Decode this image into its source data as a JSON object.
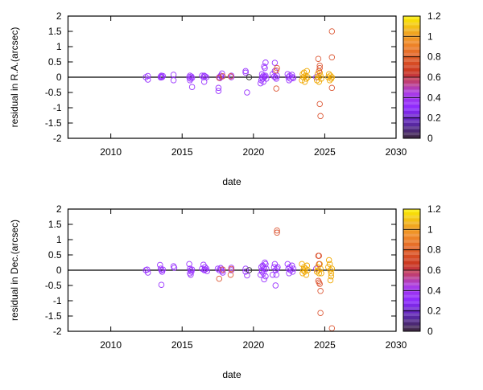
{
  "chart_data": [
    {
      "type": "scatter",
      "xlabel": "date",
      "ylabel": "residual in R.A.(arcsec)",
      "xlim": [
        2007,
        2030
      ],
      "ylim": [
        -2,
        2
      ],
      "xticks": [
        "2010",
        "2015",
        "2020",
        "2025",
        "2030"
      ],
      "yticks": [
        "-2",
        "-1.5",
        "-1",
        "-0.5",
        "0",
        "0.5",
        "1",
        "1.5",
        "2"
      ],
      "zero_line": true,
      "marker": "open-circle",
      "colorbar": {
        "range": [
          0,
          1.2
        ],
        "ticks": [
          "0",
          "0.2",
          "0.4",
          "0.6",
          "0.8",
          "1",
          "1.2"
        ],
        "placement": "right"
      },
      "points": [
        [
          2012.45,
          0,
          0.35
        ],
        [
          2012.6,
          -0.08,
          0.35
        ],
        [
          2012.6,
          0.04,
          0.35
        ],
        [
          2013.5,
          0.02,
          0.35
        ],
        [
          2013.55,
          0.05,
          0.35
        ],
        [
          2013.6,
          0,
          0.35
        ],
        [
          2013.65,
          0.04,
          0.35
        ],
        [
          2013.5,
          -0.01,
          0.35
        ],
        [
          2014.4,
          0.08,
          0.35
        ],
        [
          2014.4,
          -0.1,
          0.35
        ],
        [
          2015.5,
          0,
          0.35
        ],
        [
          2015.55,
          0.05,
          0.35
        ],
        [
          2015.6,
          -0.05,
          0.35
        ],
        [
          2015.65,
          0.02,
          0.35
        ],
        [
          2015.7,
          -0.02,
          0.35
        ],
        [
          2015.55,
          -0.1,
          0.35
        ],
        [
          2015.7,
          -0.32,
          0.35
        ],
        [
          2016.4,
          0.05,
          0.35
        ],
        [
          2016.5,
          0,
          0.35
        ],
        [
          2016.55,
          -0.15,
          0.35
        ],
        [
          2016.6,
          0.03,
          0.35
        ],
        [
          2016.7,
          0,
          0.35
        ],
        [
          2016.55,
          0.05,
          0.35
        ],
        [
          2017.55,
          -0.35,
          0.35
        ],
        [
          2017.55,
          -0.45,
          0.35
        ],
        [
          2017.6,
          0,
          0.35
        ],
        [
          2017.7,
          0.05,
          0.35
        ],
        [
          2017.8,
          0.12,
          0.35
        ],
        [
          2017.75,
          0.02,
          0.35
        ],
        [
          2017.65,
          -0.03,
          0.35
        ],
        [
          2017.6,
          -0.02,
          0.8
        ],
        [
          2017.85,
          0.03,
          0.8
        ],
        [
          2018.45,
          0.05,
          0.35
        ],
        [
          2018.45,
          0,
          0.35
        ],
        [
          2018.4,
          0.03,
          0.8
        ],
        [
          2019.45,
          0.2,
          0.35
        ],
        [
          2019.45,
          0.15,
          0.35
        ],
        [
          2019.55,
          -0.5,
          0.35
        ],
        [
          2019.7,
          0,
          0.05
        ],
        [
          2020.5,
          -0.2,
          0.35
        ],
        [
          2020.55,
          -0.1,
          0.35
        ],
        [
          2020.6,
          0,
          0.35
        ],
        [
          2020.6,
          0.1,
          0.35
        ],
        [
          2020.65,
          -0.05,
          0.35
        ],
        [
          2020.7,
          0.05,
          0.35
        ],
        [
          2020.7,
          -0.15,
          0.35
        ],
        [
          2020.75,
          0,
          0.35
        ],
        [
          2020.8,
          0.3,
          0.35
        ],
        [
          2020.75,
          0.35,
          0.35
        ],
        [
          2020.85,
          0.48,
          0.35
        ],
        [
          2020.85,
          0.05,
          0.35
        ],
        [
          2020.9,
          -0.05,
          0.35
        ],
        [
          2020.8,
          0.02,
          0.35
        ],
        [
          2021.35,
          0.1,
          0.35
        ],
        [
          2021.5,
          0.47,
          0.35
        ],
        [
          2021.5,
          0.2,
          0.35
        ],
        [
          2021.55,
          0,
          0.35
        ],
        [
          2021.6,
          -0.05,
          0.35
        ],
        [
          2021.65,
          0.05,
          0.35
        ],
        [
          2021.45,
          0.02,
          0.35
        ],
        [
          2021.6,
          -0.37,
          0.8
        ],
        [
          2021.65,
          0.3,
          0.8
        ],
        [
          2021.6,
          0.22,
          0.8
        ],
        [
          2022.4,
          0.1,
          0.35
        ],
        [
          2022.45,
          0,
          0.35
        ],
        [
          2022.5,
          -0.1,
          0.35
        ],
        [
          2022.55,
          0.05,
          0.35
        ],
        [
          2022.6,
          -0.05,
          0.35
        ],
        [
          2022.7,
          0.08,
          0.35
        ],
        [
          2022.75,
          0,
          0.35
        ],
        [
          2022.8,
          -0.03,
          0.35
        ],
        [
          2023.4,
          -0.1,
          1.0
        ],
        [
          2023.45,
          0.1,
          1.0
        ],
        [
          2023.5,
          0,
          1.0
        ],
        [
          2023.55,
          0.15,
          1.0
        ],
        [
          2023.6,
          -0.15,
          1.0
        ],
        [
          2023.65,
          0.05,
          1.0
        ],
        [
          2023.7,
          -0.05,
          1.0
        ],
        [
          2023.75,
          0.2,
          1.0
        ],
        [
          2023.8,
          0,
          1.0
        ],
        [
          2024.4,
          0,
          0.35
        ],
        [
          2024.45,
          -0.1,
          1.0
        ],
        [
          2024.5,
          0.1,
          1.0
        ],
        [
          2024.55,
          0,
          1.0
        ],
        [
          2024.6,
          -0.15,
          1.0
        ],
        [
          2024.65,
          0.15,
          1.0
        ],
        [
          2024.7,
          0.05,
          1.0
        ],
        [
          2024.75,
          -0.05,
          1.0
        ],
        [
          2024.55,
          0.6,
          0.8
        ],
        [
          2024.65,
          0.38,
          0.8
        ],
        [
          2024.65,
          0.3,
          0.8
        ],
        [
          2024.6,
          0.2,
          0.8
        ],
        [
          2024.65,
          -0.88,
          0.8
        ],
        [
          2024.7,
          -1.27,
          0.8
        ],
        [
          2025.25,
          0,
          1.0
        ],
        [
          2025.3,
          0.1,
          1.0
        ],
        [
          2025.35,
          -0.1,
          1.0
        ],
        [
          2025.4,
          0.05,
          1.0
        ],
        [
          2025.45,
          -0.05,
          1.0
        ],
        [
          2025.5,
          0,
          1.0
        ],
        [
          2025.5,
          1.5,
          0.8
        ],
        [
          2025.5,
          0.65,
          0.8
        ],
        [
          2025.5,
          -0.35,
          0.8
        ]
      ]
    },
    {
      "type": "scatter",
      "xlabel": "date",
      "ylabel": "residual in Dec.(arcsec)",
      "xlim": [
        2007,
        2030
      ],
      "ylim": [
        -2,
        2
      ],
      "xticks": [
        "2010",
        "2015",
        "2020",
        "2025",
        "2030"
      ],
      "yticks": [
        "-2",
        "-1.5",
        "-1",
        "-0.5",
        "0",
        "0.5",
        "1",
        "1.5",
        "2"
      ],
      "zero_line": true,
      "marker": "open-circle",
      "colorbar": {
        "range": [
          0,
          1.2
        ],
        "ticks": [
          "0",
          "0.2",
          "0.4",
          "0.6",
          "0.8",
          "1",
          "1.2"
        ],
        "placement": "right"
      },
      "points": [
        [
          2012.45,
          0,
          0.35
        ],
        [
          2012.6,
          -0.08,
          0.35
        ],
        [
          2012.55,
          0.02,
          0.35
        ],
        [
          2013.45,
          0.17,
          0.35
        ],
        [
          2013.5,
          0.05,
          0.35
        ],
        [
          2013.55,
          0,
          0.35
        ],
        [
          2013.6,
          -0.05,
          0.35
        ],
        [
          2013.65,
          0.02,
          0.35
        ],
        [
          2013.55,
          -0.48,
          0.35
        ],
        [
          2014.4,
          0.13,
          0.35
        ],
        [
          2014.45,
          0.08,
          0.35
        ],
        [
          2015.5,
          0.2,
          0.35
        ],
        [
          2015.55,
          0.05,
          0.35
        ],
        [
          2015.6,
          0,
          0.35
        ],
        [
          2015.55,
          -0.1,
          0.35
        ],
        [
          2015.6,
          -0.15,
          0.35
        ],
        [
          2015.7,
          0.02,
          0.35
        ],
        [
          2015.65,
          -0.05,
          0.35
        ],
        [
          2016.4,
          0.05,
          0.35
        ],
        [
          2016.5,
          0.18,
          0.35
        ],
        [
          2016.55,
          0,
          0.35
        ],
        [
          2016.6,
          0.1,
          0.35
        ],
        [
          2016.7,
          0.05,
          0.35
        ],
        [
          2016.75,
          -0.03,
          0.35
        ],
        [
          2016.6,
          0.02,
          0.35
        ],
        [
          2017.5,
          0.05,
          0.35
        ],
        [
          2017.6,
          0,
          0.35
        ],
        [
          2017.7,
          0.07,
          0.35
        ],
        [
          2017.75,
          0.02,
          0.35
        ],
        [
          2017.8,
          -0.03,
          0.35
        ],
        [
          2017.85,
          -0.08,
          0.35
        ],
        [
          2017.6,
          -0.28,
          0.8
        ],
        [
          2017.85,
          0.02,
          0.8
        ],
        [
          2018.45,
          0.08,
          0.35
        ],
        [
          2018.45,
          0,
          0.35
        ],
        [
          2018.4,
          -0.15,
          0.8
        ],
        [
          2018.45,
          0.04,
          0.8
        ],
        [
          2019.45,
          0.05,
          0.35
        ],
        [
          2019.45,
          -0.05,
          0.35
        ],
        [
          2019.55,
          -0.17,
          0.35
        ],
        [
          2019.7,
          0,
          0.05
        ],
        [
          2020.5,
          -0.15,
          0.35
        ],
        [
          2020.55,
          0.1,
          0.35
        ],
        [
          2020.6,
          0,
          0.35
        ],
        [
          2020.6,
          -0.05,
          0.35
        ],
        [
          2020.65,
          0.15,
          0.35
        ],
        [
          2020.7,
          -0.1,
          0.35
        ],
        [
          2020.75,
          0.05,
          0.35
        ],
        [
          2020.8,
          0.25,
          0.35
        ],
        [
          2020.75,
          -0.3,
          0.35
        ],
        [
          2020.85,
          0.2,
          0.35
        ],
        [
          2020.85,
          -0.2,
          0.35
        ],
        [
          2020.9,
          0.05,
          0.35
        ],
        [
          2020.7,
          0.1,
          0.35
        ],
        [
          2021.35,
          -0.15,
          0.35
        ],
        [
          2021.45,
          0.1,
          0.35
        ],
        [
          2021.5,
          0.2,
          0.35
        ],
        [
          2021.55,
          0,
          0.35
        ],
        [
          2021.6,
          -0.15,
          0.35
        ],
        [
          2021.55,
          -0.5,
          0.35
        ],
        [
          2021.65,
          0.05,
          0.35
        ],
        [
          2021.7,
          0.1,
          0.35
        ],
        [
          2021.65,
          1.3,
          0.8
        ],
        [
          2021.65,
          1.23,
          0.8
        ],
        [
          2022.4,
          0.2,
          0.35
        ],
        [
          2022.45,
          0.05,
          0.35
        ],
        [
          2022.5,
          -0.1,
          0.35
        ],
        [
          2022.55,
          0.1,
          0.35
        ],
        [
          2022.6,
          0,
          0.35
        ],
        [
          2022.7,
          0.15,
          0.35
        ],
        [
          2022.75,
          -0.05,
          0.35
        ],
        [
          2022.8,
          0.05,
          0.35
        ],
        [
          2023.4,
          0.2,
          1.0
        ],
        [
          2023.45,
          -0.1,
          1.0
        ],
        [
          2023.5,
          0,
          1.0
        ],
        [
          2023.55,
          0.1,
          1.0
        ],
        [
          2023.6,
          -0.05,
          1.0
        ],
        [
          2023.65,
          0.05,
          1.0
        ],
        [
          2023.7,
          -0.15,
          1.0
        ],
        [
          2023.75,
          0.15,
          1.0
        ],
        [
          2023.8,
          0,
          1.0
        ],
        [
          2024.4,
          0.05,
          0.35
        ],
        [
          2024.45,
          -0.05,
          1.0
        ],
        [
          2024.5,
          0.1,
          1.0
        ],
        [
          2024.55,
          0,
          1.0
        ],
        [
          2024.6,
          -0.1,
          1.0
        ],
        [
          2024.65,
          0.2,
          1.0
        ],
        [
          2024.7,
          0.05,
          1.0
        ],
        [
          2024.75,
          -0.1,
          1.0
        ],
        [
          2024.55,
          0.47,
          0.8
        ],
        [
          2024.6,
          0.47,
          0.8
        ],
        [
          2024.6,
          0.2,
          0.8
        ],
        [
          2024.55,
          -0.35,
          0.8
        ],
        [
          2024.6,
          -0.4,
          0.8
        ],
        [
          2024.65,
          -0.45,
          0.8
        ],
        [
          2024.7,
          -0.68,
          0.8
        ],
        [
          2024.7,
          -1.4,
          0.8
        ],
        [
          2025.25,
          0.1,
          1.0
        ],
        [
          2025.3,
          0.33,
          1.0
        ],
        [
          2025.35,
          0.2,
          1.0
        ],
        [
          2025.4,
          0,
          1.0
        ],
        [
          2025.45,
          -0.1,
          1.0
        ],
        [
          2025.5,
          0.05,
          1.0
        ],
        [
          2025.45,
          -0.2,
          1.0
        ],
        [
          2025.4,
          -0.33,
          1.0
        ],
        [
          2025.5,
          -1.9,
          0.8
        ]
      ]
    }
  ]
}
